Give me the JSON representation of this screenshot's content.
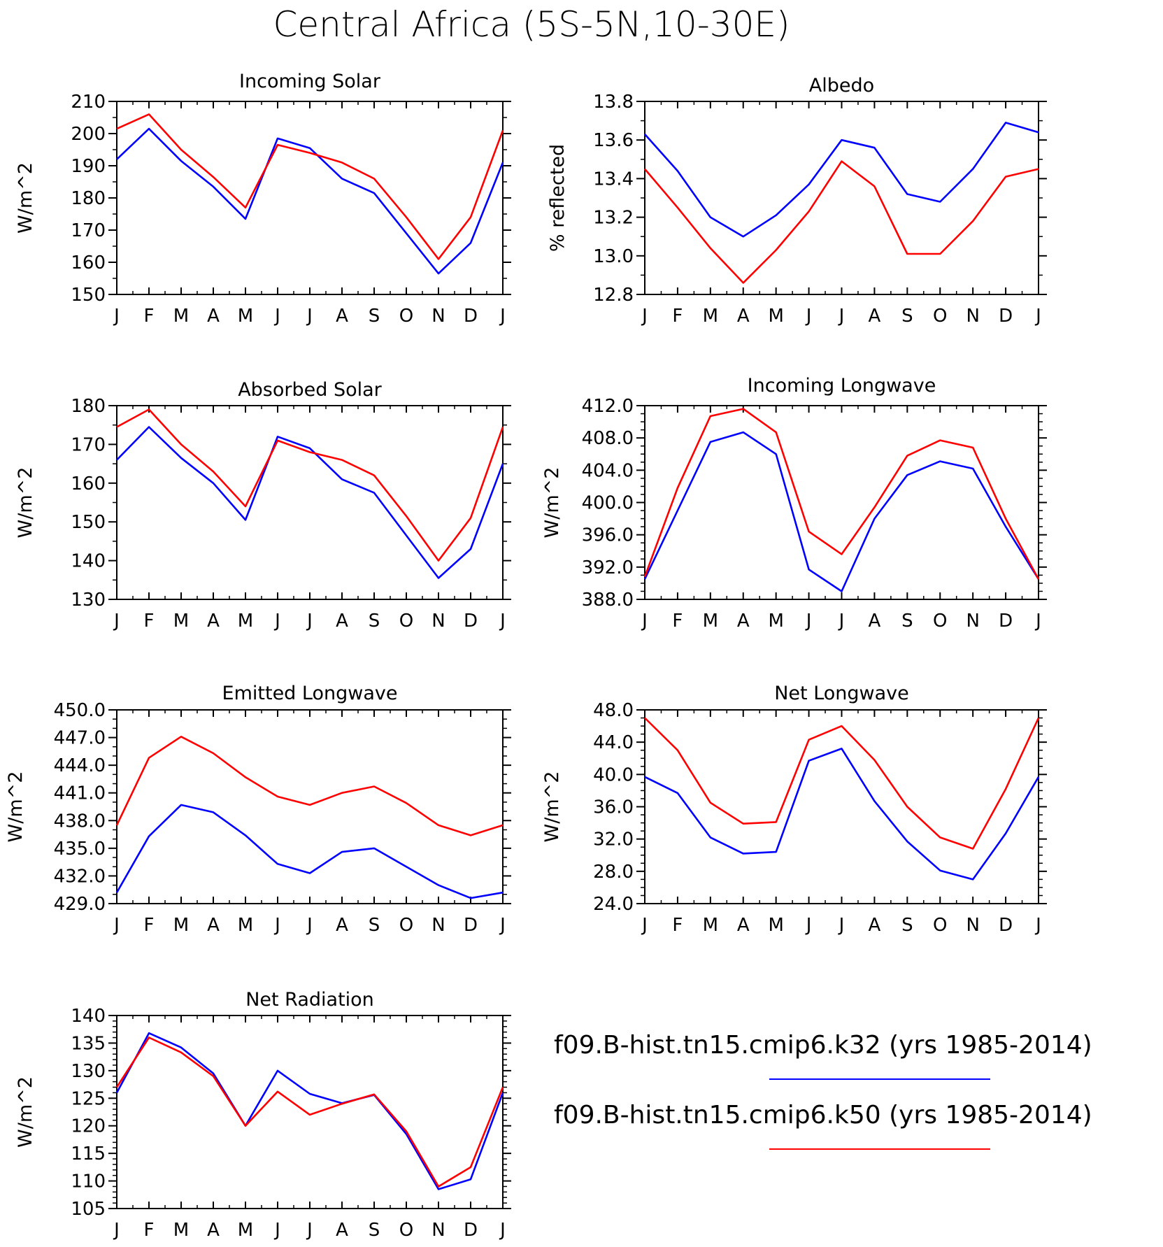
{
  "figure_title": "Central Africa (5S-5N,10-30E)",
  "colors": {
    "k32": "#0000ff",
    "k50": "#ff0000",
    "axes": "#000000"
  },
  "legend": {
    "entries": [
      {
        "label": "f09.B-hist.tn15.cmip6.k32 (yrs 1985-2014)",
        "color": "#0000ff"
      },
      {
        "label": "f09.B-hist.tn15.cmip6.k50 (yrs 1985-2014)",
        "color": "#ff0000"
      }
    ]
  },
  "chart_data": [
    {
      "type": "line",
      "title": "Incoming Solar",
      "ylabel": "W/m^2",
      "categories": [
        "J",
        "F",
        "M",
        "A",
        "M",
        "J",
        "J",
        "A",
        "S",
        "O",
        "N",
        "D",
        "J"
      ],
      "ylim": [
        150,
        210
      ],
      "yticks": [
        "150",
        "160",
        "170",
        "180",
        "190",
        "200",
        "210"
      ],
      "ytick_values": [
        150,
        160,
        170,
        180,
        190,
        200,
        210
      ],
      "yminor": 2,
      "grid": false,
      "series": [
        {
          "name": "f09.B-hist.tn15.cmip6.k32 (yrs 1985-2014)",
          "color": "#0000ff",
          "values": [
            192,
            201.5,
            191.5,
            183.5,
            173.5,
            198.5,
            195.5,
            186,
            181.5,
            169,
            156.5,
            166,
            191
          ]
        },
        {
          "name": "f09.B-hist.tn15.cmip6.k50 (yrs 1985-2014)",
          "color": "#ff0000",
          "values": [
            201.5,
            206,
            195,
            186.5,
            177,
            196.5,
            194,
            191,
            186,
            174,
            161,
            174,
            201
          ]
        }
      ]
    },
    {
      "type": "line",
      "title": "Albedo",
      "ylabel": "% reflected",
      "categories": [
        "J",
        "F",
        "M",
        "A",
        "M",
        "J",
        "J",
        "A",
        "S",
        "O",
        "N",
        "D",
        "J"
      ],
      "ylim": [
        12.8,
        13.8
      ],
      "yticks": [
        "12.8",
        "13.0",
        "13.2",
        "13.4",
        "13.6",
        "13.8"
      ],
      "ytick_values": [
        12.8,
        13.0,
        13.2,
        13.4,
        13.6,
        13.8
      ],
      "yminor": 2,
      "grid": false,
      "series": [
        {
          "name": "f09.B-hist.tn15.cmip6.k32 (yrs 1985-2014)",
          "color": "#0000ff",
          "values": [
            13.63,
            13.44,
            13.2,
            13.1,
            13.21,
            13.37,
            13.6,
            13.56,
            13.32,
            13.28,
            13.45,
            13.69,
            13.64
          ]
        },
        {
          "name": "f09.B-hist.tn15.cmip6.k50 (yrs 1985-2014)",
          "color": "#ff0000",
          "values": [
            13.45,
            13.25,
            13.04,
            12.86,
            13.03,
            13.23,
            13.49,
            13.36,
            13.01,
            13.01,
            13.18,
            13.41,
            13.45
          ]
        }
      ]
    },
    {
      "type": "line",
      "title": "Absorbed Solar",
      "ylabel": "W/m^2",
      "categories": [
        "J",
        "F",
        "M",
        "A",
        "M",
        "J",
        "J",
        "A",
        "S",
        "O",
        "N",
        "D",
        "J"
      ],
      "ylim": [
        130,
        180
      ],
      "yticks": [
        "130",
        "140",
        "150",
        "160",
        "170",
        "180"
      ],
      "ytick_values": [
        130,
        140,
        150,
        160,
        170,
        180
      ],
      "yminor": 2,
      "grid": false,
      "series": [
        {
          "name": "f09.B-hist.tn15.cmip6.k32 (yrs 1985-2014)",
          "color": "#0000ff",
          "values": [
            166,
            174.5,
            166.5,
            160,
            150.5,
            172,
            169,
            161,
            157.5,
            146.5,
            135.5,
            143,
            165
          ]
        },
        {
          "name": "f09.B-hist.tn15.cmip6.k50 (yrs 1985-2014)",
          "color": "#ff0000",
          "values": [
            174.5,
            179,
            170,
            163,
            154,
            171,
            168,
            166,
            162,
            151.5,
            140,
            151,
            174.5
          ]
        }
      ]
    },
    {
      "type": "line",
      "title": "Incoming Longwave",
      "ylabel": "W/m^2",
      "categories": [
        "J",
        "F",
        "M",
        "A",
        "M",
        "J",
        "J",
        "A",
        "S",
        "O",
        "N",
        "D",
        "J"
      ],
      "ylim": [
        388,
        412
      ],
      "yticks": [
        "388.0",
        "392.0",
        "396.0",
        "400.0",
        "404.0",
        "408.0",
        "412.0"
      ],
      "ytick_values": [
        388,
        392,
        396,
        400,
        404,
        408,
        412
      ],
      "yminor": 4,
      "grid": false,
      "series": [
        {
          "name": "f09.B-hist.tn15.cmip6.k32 (yrs 1985-2014)",
          "color": "#0000ff",
          "values": [
            390.5,
            399,
            407.5,
            408.7,
            406,
            391.7,
            389,
            398,
            403.4,
            405.1,
            404.2,
            397,
            390.5
          ]
        },
        {
          "name": "f09.B-hist.tn15.cmip6.k50 (yrs 1985-2014)",
          "color": "#ff0000",
          "values": [
            390.8,
            401.8,
            410.7,
            411.6,
            408.7,
            396.4,
            393.6,
            399.4,
            405.8,
            407.7,
            406.8,
            398,
            390.5
          ]
        }
      ]
    },
    {
      "type": "line",
      "title": "Emitted Longwave",
      "ylabel": "W/m^2",
      "categories": [
        "J",
        "F",
        "M",
        "A",
        "M",
        "J",
        "J",
        "A",
        "S",
        "O",
        "N",
        "D",
        "J"
      ],
      "ylim": [
        429,
        450
      ],
      "yticks": [
        "429.0",
        "432.0",
        "435.0",
        "438.0",
        "441.0",
        "444.0",
        "447.0",
        "450.0"
      ],
      "ytick_values": [
        429,
        432,
        435,
        438,
        441,
        444,
        447,
        450
      ],
      "yminor": 3,
      "grid": false,
      "series": [
        {
          "name": "f09.B-hist.tn15.cmip6.k32 (yrs 1985-2014)",
          "color": "#0000ff",
          "values": [
            430.2,
            436.3,
            439.7,
            438.9,
            436.4,
            433.3,
            432.3,
            434.6,
            435,
            433,
            431,
            429.6,
            430.2
          ]
        },
        {
          "name": "f09.B-hist.tn15.cmip6.k50 (yrs 1985-2014)",
          "color": "#ff0000",
          "values": [
            437.5,
            444.8,
            447.1,
            445.3,
            442.7,
            440.6,
            439.7,
            441,
            441.7,
            439.9,
            437.5,
            436.4,
            437.5
          ]
        }
      ]
    },
    {
      "type": "line",
      "title": "Net Longwave",
      "ylabel": "W/m^2",
      "categories": [
        "J",
        "F",
        "M",
        "A",
        "M",
        "J",
        "J",
        "A",
        "S",
        "O",
        "N",
        "D",
        "J"
      ],
      "ylim": [
        24,
        48
      ],
      "yticks": [
        "24.0",
        "28.0",
        "32.0",
        "36.0",
        "40.0",
        "44.0",
        "48.0"
      ],
      "ytick_values": [
        24,
        28,
        32,
        36,
        40,
        44,
        48
      ],
      "yminor": 4,
      "grid": false,
      "series": [
        {
          "name": "f09.B-hist.tn15.cmip6.k32 (yrs 1985-2014)",
          "color": "#0000ff",
          "values": [
            39.7,
            37.7,
            32.2,
            30.2,
            30.4,
            41.7,
            43.2,
            36.7,
            31.7,
            28.1,
            27,
            32.7,
            39.7
          ]
        },
        {
          "name": "f09.B-hist.tn15.cmip6.k50 (yrs 1985-2014)",
          "color": "#ff0000",
          "values": [
            47,
            43,
            36.5,
            33.9,
            34.1,
            44.3,
            46,
            41.8,
            36,
            32.2,
            30.8,
            38.2,
            47
          ]
        }
      ]
    },
    {
      "type": "line",
      "title": "Net Radiation",
      "ylabel": "W/m^2",
      "categories": [
        "J",
        "F",
        "M",
        "A",
        "M",
        "J",
        "J",
        "A",
        "S",
        "O",
        "N",
        "D",
        "J"
      ],
      "ylim": [
        105,
        140
      ],
      "yticks": [
        "105",
        "110",
        "115",
        "120",
        "125",
        "130",
        "135",
        "140"
      ],
      "ytick_values": [
        105,
        110,
        115,
        120,
        125,
        130,
        135,
        140
      ],
      "yminor": 5,
      "grid": false,
      "series": [
        {
          "name": "f09.B-hist.tn15.cmip6.k32 (yrs 1985-2014)",
          "color": "#0000ff",
          "values": [
            126,
            136.8,
            134.2,
            129.5,
            120,
            130,
            125.8,
            124.1,
            125.6,
            118.5,
            108.5,
            110.3,
            126
          ]
        },
        {
          "name": "f09.B-hist.tn15.cmip6.k50 (yrs 1985-2014)",
          "color": "#ff0000",
          "values": [
            127,
            136,
            133.3,
            129,
            120,
            126.2,
            122,
            124,
            125.7,
            119,
            109,
            112.5,
            127
          ]
        }
      ]
    }
  ]
}
